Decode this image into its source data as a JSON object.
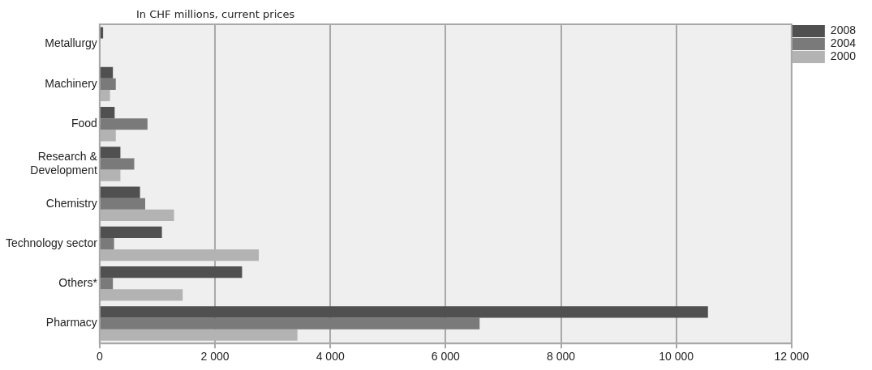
{
  "chart_data": {
    "type": "bar",
    "orientation": "horizontal",
    "subtitle": "In CHF millions, current prices",
    "categories": [
      "Metallurgy",
      "Machinery",
      "Food",
      "Research & Development",
      "Chemistry",
      "Technology sector",
      "Others*",
      "Pharmacy"
    ],
    "series": [
      {
        "name": "2008",
        "color": "#505050",
        "values": [
          60,
          230,
          260,
          360,
          700,
          1080,
          2470,
          10550
        ]
      },
      {
        "name": "2004",
        "color": "#7a7a7a",
        "values": [
          null,
          280,
          830,
          600,
          790,
          250,
          230,
          6590
        ]
      },
      {
        "name": "2000",
        "color": "#b3b3b3",
        "values": [
          null,
          180,
          280,
          360,
          1290,
          2760,
          1440,
          3430
        ]
      }
    ],
    "xlim": [
      0,
      12000
    ],
    "xticks": [
      0,
      {
        "value": 2000,
        "label": "2 000"
      },
      {
        "value": 4000,
        "label": "4 000"
      },
      {
        "value": 6000,
        "label": "6 000"
      },
      {
        "value": 8000,
        "label": "8 000"
      },
      {
        "value": 10000,
        "label": "10 000"
      },
      {
        "value": 12000,
        "label": "12 000"
      }
    ],
    "grid": "x",
    "legend": "top right"
  }
}
